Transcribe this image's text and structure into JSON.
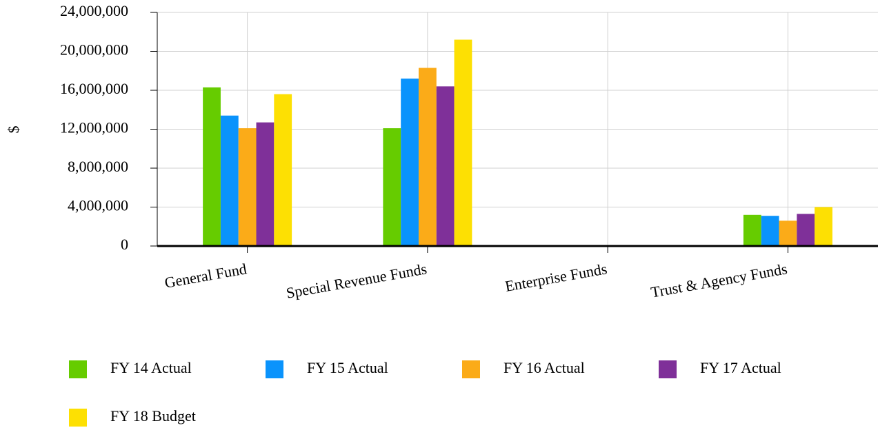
{
  "chart_data": {
    "type": "bar",
    "y_label": "$",
    "categories": [
      "General Fund",
      "Special Revenue Funds",
      "Enterprise Funds",
      "Trust & Agency Funds"
    ],
    "series": [
      {
        "name": "FY 14 Actual",
        "color": "#66cc00",
        "values": [
          16300000,
          12100000,
          0,
          3200000
        ]
      },
      {
        "name": "FY 15 Actual",
        "color": "#0a93fc",
        "values": [
          13400000,
          17200000,
          0,
          3100000
        ]
      },
      {
        "name": "FY 16 Actual",
        "color": "#fbab18",
        "values": [
          12100000,
          18300000,
          0,
          2600000
        ]
      },
      {
        "name": "FY 17 Actual",
        "color": "#7f3099",
        "values": [
          12700000,
          16400000,
          0,
          3300000
        ]
      },
      {
        "name": "FY 18 Budget",
        "color": "#fde003",
        "values": [
          15600000,
          21200000,
          0,
          4000000
        ]
      }
    ],
    "ylim": [
      0,
      24000000
    ],
    "yticks": [
      0,
      {
        "value": 4000000,
        "label": "4,000,000"
      },
      {
        "value": 8000000,
        "label": "8,000,000"
      },
      {
        "value": 12000000,
        "label": "12,000,000"
      },
      {
        "value": 16000000,
        "label": "16,000,000"
      },
      {
        "value": 20000000,
        "label": "20,000,000"
      },
      {
        "value": 24000000,
        "label": "24,000,000"
      }
    ],
    "grid": true,
    "legend": "bottom"
  }
}
